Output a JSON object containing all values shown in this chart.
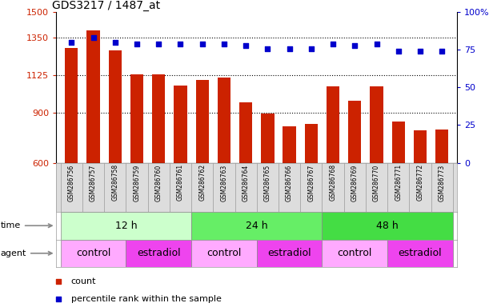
{
  "title": "GDS3217 / 1487_at",
  "samples": [
    "GSM286756",
    "GSM286757",
    "GSM286758",
    "GSM286759",
    "GSM286760",
    "GSM286761",
    "GSM286762",
    "GSM286763",
    "GSM286764",
    "GSM286765",
    "GSM286766",
    "GSM286767",
    "GSM286768",
    "GSM286769",
    "GSM286770",
    "GSM286771",
    "GSM286772",
    "GSM286773"
  ],
  "counts": [
    1285,
    1390,
    1270,
    1130,
    1130,
    1060,
    1095,
    1110,
    960,
    895,
    820,
    830,
    1055,
    970,
    1055,
    845,
    795,
    800
  ],
  "percentiles": [
    80,
    83,
    80,
    79,
    79,
    79,
    79,
    79,
    78,
    76,
    76,
    76,
    79,
    78,
    79,
    74,
    74,
    74
  ],
  "ylim_left": [
    600,
    1500
  ],
  "ylim_right": [
    0,
    100
  ],
  "yticks_left": [
    600,
    900,
    1125,
    1350,
    1500
  ],
  "yticks_left_labels": [
    "600",
    "900",
    "1125",
    "1350",
    "1500"
  ],
  "yticks_right": [
    0,
    25,
    50,
    75,
    100
  ],
  "yticks_right_labels": [
    "0",
    "25",
    "50",
    "75",
    "100%"
  ],
  "bar_color": "#cc2200",
  "dot_color": "#0000cc",
  "time_groups": [
    {
      "label": "12 h",
      "start": 0,
      "end": 5,
      "color": "#ccffcc"
    },
    {
      "label": "24 h",
      "start": 6,
      "end": 11,
      "color": "#66ee66"
    },
    {
      "label": "48 h",
      "start": 12,
      "end": 17,
      "color": "#44dd44"
    }
  ],
  "agent_groups": [
    {
      "label": "control",
      "start": 0,
      "end": 2,
      "color": "#ffaaff"
    },
    {
      "label": "estradiol",
      "start": 3,
      "end": 5,
      "color": "#ee44ee"
    },
    {
      "label": "control",
      "start": 6,
      "end": 8,
      "color": "#ffaaff"
    },
    {
      "label": "estradiol",
      "start": 9,
      "end": 11,
      "color": "#ee44ee"
    },
    {
      "label": "control",
      "start": 12,
      "end": 14,
      "color": "#ffaaff"
    },
    {
      "label": "estradiol",
      "start": 15,
      "end": 17,
      "color": "#ee44ee"
    }
  ],
  "legend_items": [
    {
      "label": "count",
      "color": "#cc2200"
    },
    {
      "label": "percentile rank within the sample",
      "color": "#0000cc"
    }
  ],
  "bg_color": "#ffffff",
  "tick_color_left": "#cc2200",
  "tick_color_right": "#0000cc",
  "figsize": [
    6.11,
    3.84
  ],
  "dpi": 100
}
